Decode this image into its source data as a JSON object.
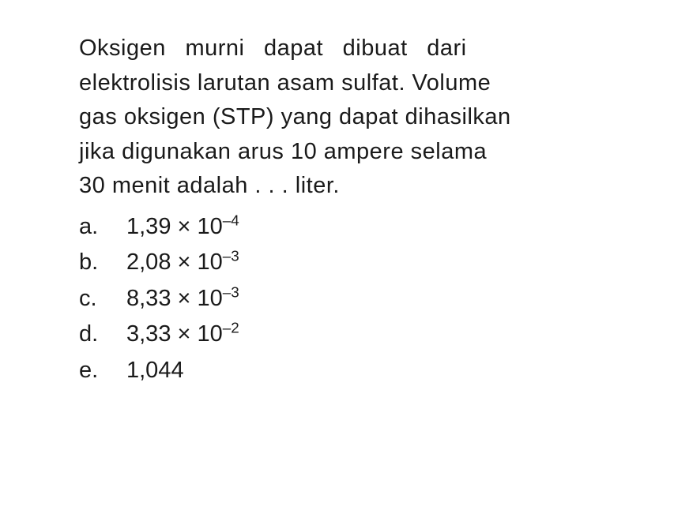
{
  "question": {
    "line1": "Oksigen murni dapat dibuat dari",
    "line2": "elektrolisis larutan asam sulfat. Volume",
    "line3": "gas oksigen (STP) yang dapat dihasilkan",
    "line4": "jika digunakan arus 10 ampere selama",
    "line5": "30 menit adalah . . . liter."
  },
  "options": [
    {
      "letter": "a.",
      "coefficient": "1,39",
      "times": "×",
      "base": "10",
      "exponent": "–4"
    },
    {
      "letter": "b.",
      "coefficient": "2,08",
      "times": "×",
      "base": "10",
      "exponent": "–3"
    },
    {
      "letter": "c.",
      "coefficient": "8,33",
      "times": "×",
      "base": "10",
      "exponent": "–3"
    },
    {
      "letter": "d.",
      "coefficient": "3,33",
      "times": "×",
      "base": "10",
      "exponent": "–2"
    },
    {
      "letter": "e.",
      "coefficient": "1,044",
      "times": "",
      "base": "",
      "exponent": ""
    }
  ],
  "styling": {
    "background_color": "#ffffff",
    "text_color": "#1a1a1a",
    "font_size_pt": 29,
    "font_family": "Arial",
    "line_height": 1.5
  }
}
